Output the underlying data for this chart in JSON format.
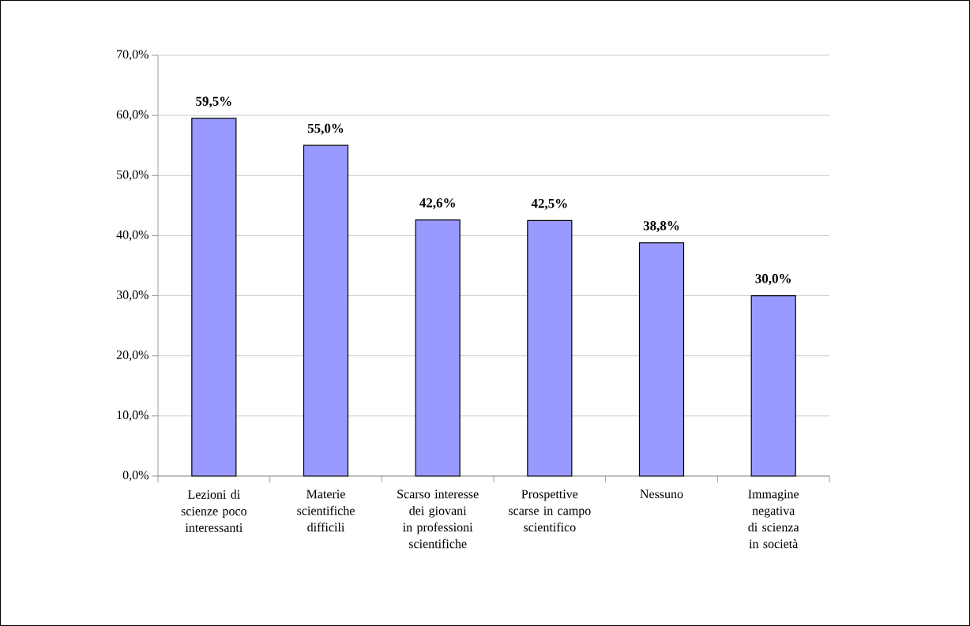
{
  "chart_data": {
    "type": "bar",
    "categories": [
      "Lezioni di scienze poco interessanti",
      "Materie scientifiche difficili",
      "Scarso interesse dei giovani in professioni scientifiche",
      "Prospettive scarse in campo scientifico",
      "Nessuno",
      "Immagine negativa di scienza in società"
    ],
    "values": [
      59.5,
      55.0,
      42.6,
      42.5,
      38.8,
      30.0
    ],
    "value_labels": [
      "59,5%",
      "55,0%",
      "42,6%",
      "42,5%",
      "38,8%",
      "30,0%"
    ],
    "color": "#9999ff",
    "ylim": [
      0,
      70
    ],
    "yticks": [
      {
        "value": 0,
        "label": "0,0%"
      },
      {
        "value": 10,
        "label": "10,0%"
      },
      {
        "value": 20,
        "label": "20,0%"
      },
      {
        "value": 30,
        "label": "30,0%"
      },
      {
        "value": 40,
        "label": "40,0%"
      },
      {
        "value": 50,
        "label": "50,0%"
      },
      {
        "value": 60,
        "label": "60,0%"
      },
      {
        "value": 70,
        "label": "70,0%"
      }
    ],
    "grid": "y"
  }
}
